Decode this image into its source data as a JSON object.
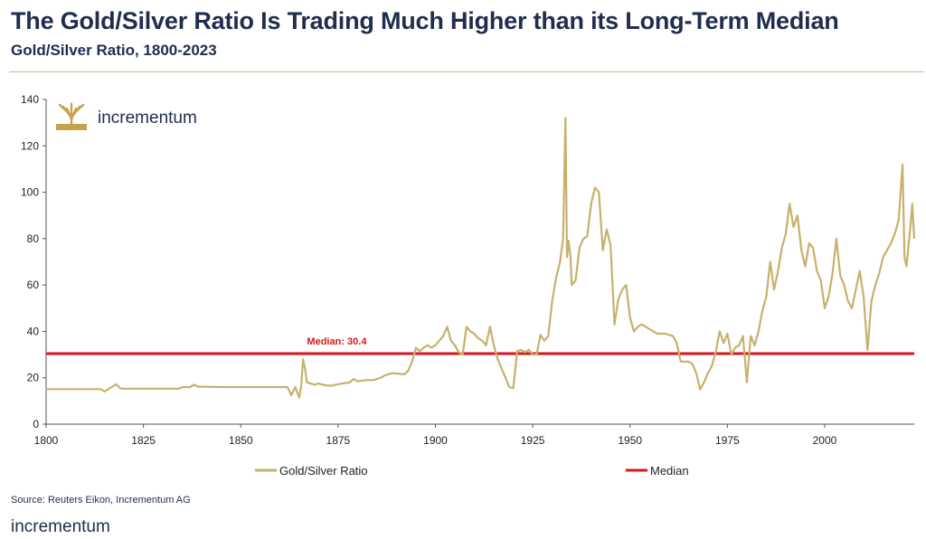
{
  "header": {
    "title": "The Gold/Silver Ratio Is Trading Much Higher than its Long-Term Median",
    "subtitle": "Gold/Silver Ratio, 1800-2023"
  },
  "logo": {
    "text": "incrementum",
    "icon": "tree-icon"
  },
  "footer": {
    "source": "Source: Reuters Eikon, Incrementum AG",
    "logo_text": "incrementum"
  },
  "colors": {
    "series": "#c8b06c",
    "median": "#d8161c",
    "title": "#1f2d4e",
    "logo_gold": "#c7a24d"
  },
  "chart_data": {
    "type": "line",
    "xlim": [
      1800,
      2023
    ],
    "ylim": [
      0,
      140
    ],
    "x_ticks": [
      1800,
      1825,
      1850,
      1875,
      1900,
      1925,
      1950,
      1975,
      2000
    ],
    "y_ticks": [
      0,
      20,
      40,
      60,
      80,
      100,
      120,
      140
    ],
    "grid": false,
    "legend_placement": "bottom",
    "legend": [
      "Gold/Silver Ratio",
      "Median"
    ],
    "annotation": "Median: 30.4",
    "median": 30.4,
    "series": [
      {
        "name": "Gold/Silver Ratio",
        "color": "#c8b06c",
        "points": [
          [
            1800,
            15.1
          ],
          [
            1814,
            15.1
          ],
          [
            1815,
            14.1
          ],
          [
            1816,
            15.1
          ],
          [
            1817,
            16.2
          ],
          [
            1818,
            17.2
          ],
          [
            1819,
            15.5
          ],
          [
            1820,
            15.3
          ],
          [
            1830,
            15.3
          ],
          [
            1834,
            15.3
          ],
          [
            1835,
            16.0
          ],
          [
            1837,
            16.0
          ],
          [
            1838,
            17.0
          ],
          [
            1839,
            16.2
          ],
          [
            1845,
            16.0
          ],
          [
            1855,
            16.0
          ],
          [
            1862,
            16.0
          ],
          [
            1863,
            12.5
          ],
          [
            1864,
            16.0
          ],
          [
            1865,
            11.5
          ],
          [
            1865.5,
            16.0
          ],
          [
            1866,
            28.0
          ],
          [
            1866.5,
            24.0
          ],
          [
            1867,
            18.0
          ],
          [
            1869,
            17.0
          ],
          [
            1870,
            17.5
          ],
          [
            1871,
            17.0
          ],
          [
            1873,
            16.5
          ],
          [
            1876,
            17.5
          ],
          [
            1878,
            18.0
          ],
          [
            1879,
            19.5
          ],
          [
            1880,
            18.5
          ],
          [
            1882,
            19.0
          ],
          [
            1884,
            19.0
          ],
          [
            1886,
            20.0
          ],
          [
            1887,
            21.0
          ],
          [
            1889,
            22.0
          ],
          [
            1892,
            21.5
          ],
          [
            1893,
            23.0
          ],
          [
            1894,
            27.0
          ],
          [
            1895,
            33.0
          ],
          [
            1896,
            31.5
          ],
          [
            1897,
            33.0
          ],
          [
            1898,
            34.0
          ],
          [
            1899,
            33.0
          ],
          [
            1900,
            34.0
          ],
          [
            1901,
            36.0
          ],
          [
            1902,
            38.0
          ],
          [
            1903,
            42.0
          ],
          [
            1904,
            36.0
          ],
          [
            1905,
            34.0
          ],
          [
            1906,
            31.0
          ],
          [
            1907,
            30.0
          ],
          [
            1908,
            42.0
          ],
          [
            1909,
            40.0
          ],
          [
            1910,
            39.0
          ],
          [
            1911,
            37.0
          ],
          [
            1912,
            36.0
          ],
          [
            1913,
            34.0
          ],
          [
            1914,
            42.0
          ],
          [
            1915,
            34.0
          ],
          [
            1916,
            28.0
          ],
          [
            1917,
            24.0
          ],
          [
            1918,
            20.0
          ],
          [
            1919,
            16.0
          ],
          [
            1920,
            15.5
          ],
          [
            1921,
            31.5
          ],
          [
            1922,
            32.0
          ],
          [
            1923,
            31.0
          ],
          [
            1924,
            32.0
          ],
          [
            1925,
            30.0
          ],
          [
            1926,
            30.0
          ],
          [
            1927,
            38.5
          ],
          [
            1928,
            36.0
          ],
          [
            1929,
            38.0
          ],
          [
            1930,
            53.0
          ],
          [
            1931,
            63.0
          ],
          [
            1932,
            70.0
          ],
          [
            1932.8,
            80.0
          ],
          [
            1933.4,
            132.0
          ],
          [
            1933.8,
            72.0
          ],
          [
            1934.2,
            79.0
          ],
          [
            1934.7,
            72.0
          ],
          [
            1935,
            60.0
          ],
          [
            1936,
            62.0
          ],
          [
            1937,
            76.0
          ],
          [
            1938,
            80.0
          ],
          [
            1939,
            81.0
          ],
          [
            1940,
            95.0
          ],
          [
            1941,
            102.0
          ],
          [
            1942,
            100.0
          ],
          [
            1943,
            75.0
          ],
          [
            1944,
            84.0
          ],
          [
            1945,
            77.0
          ],
          [
            1946,
            43.0
          ],
          [
            1947,
            54.0
          ],
          [
            1948,
            58.0
          ],
          [
            1949,
            60.0
          ],
          [
            1950,
            46.0
          ],
          [
            1951,
            40.0
          ],
          [
            1952,
            42.0
          ],
          [
            1953,
            43.0
          ],
          [
            1955,
            41.0
          ],
          [
            1957,
            39.0
          ],
          [
            1959,
            39.0
          ],
          [
            1961,
            38.0
          ],
          [
            1962,
            35.0
          ],
          [
            1963,
            27.0
          ],
          [
            1965,
            27.0
          ],
          [
            1966,
            26.0
          ],
          [
            1967,
            22.0
          ],
          [
            1968,
            15.0
          ],
          [
            1969,
            18.0
          ],
          [
            1970,
            22.0
          ],
          [
            1971,
            25.0
          ],
          [
            1972,
            31.0
          ],
          [
            1973,
            40.0
          ],
          [
            1974,
            35.0
          ],
          [
            1975,
            39.0
          ],
          [
            1976,
            30.0
          ],
          [
            1977,
            33.0
          ],
          [
            1978,
            34.0
          ],
          [
            1979,
            38.0
          ],
          [
            1980,
            18.0
          ],
          [
            1981,
            38.0
          ],
          [
            1982,
            34.0
          ],
          [
            1983,
            40.0
          ],
          [
            1984,
            49.0
          ],
          [
            1985,
            55.0
          ],
          [
            1986,
            70.0
          ],
          [
            1987,
            58.0
          ],
          [
            1988,
            66.0
          ],
          [
            1989,
            76.0
          ],
          [
            1990,
            82.0
          ],
          [
            1991,
            95.0
          ],
          [
            1992,
            85.0
          ],
          [
            1993,
            90.0
          ],
          [
            1994,
            75.0
          ],
          [
            1995,
            68.0
          ],
          [
            1996,
            78.0
          ],
          [
            1997,
            76.0
          ],
          [
            1998,
            66.0
          ],
          [
            1999,
            62.0
          ],
          [
            2000,
            50.0
          ],
          [
            2001,
            55.0
          ],
          [
            2002,
            65.0
          ],
          [
            2003,
            80.0
          ],
          [
            2004,
            64.0
          ],
          [
            2005,
            60.0
          ],
          [
            2006,
            53.0
          ],
          [
            2007,
            50.0
          ],
          [
            2008,
            58.0
          ],
          [
            2009,
            66.0
          ],
          [
            2010,
            55.0
          ],
          [
            2011,
            32.0
          ],
          [
            2012,
            53.0
          ],
          [
            2013,
            60.0
          ],
          [
            2014,
            65.0
          ],
          [
            2015,
            72.0
          ],
          [
            2016,
            75.0
          ],
          [
            2017,
            78.0
          ],
          [
            2018,
            82.0
          ],
          [
            2019,
            88.0
          ],
          [
            2020,
            112.0
          ],
          [
            2020.5,
            72.0
          ],
          [
            2021,
            68.0
          ],
          [
            2022,
            85.0
          ],
          [
            2022.5,
            95.0
          ],
          [
            2023,
            80.0
          ]
        ]
      },
      {
        "name": "Median",
        "color": "#d8161c",
        "value": 30.4
      }
    ]
  }
}
